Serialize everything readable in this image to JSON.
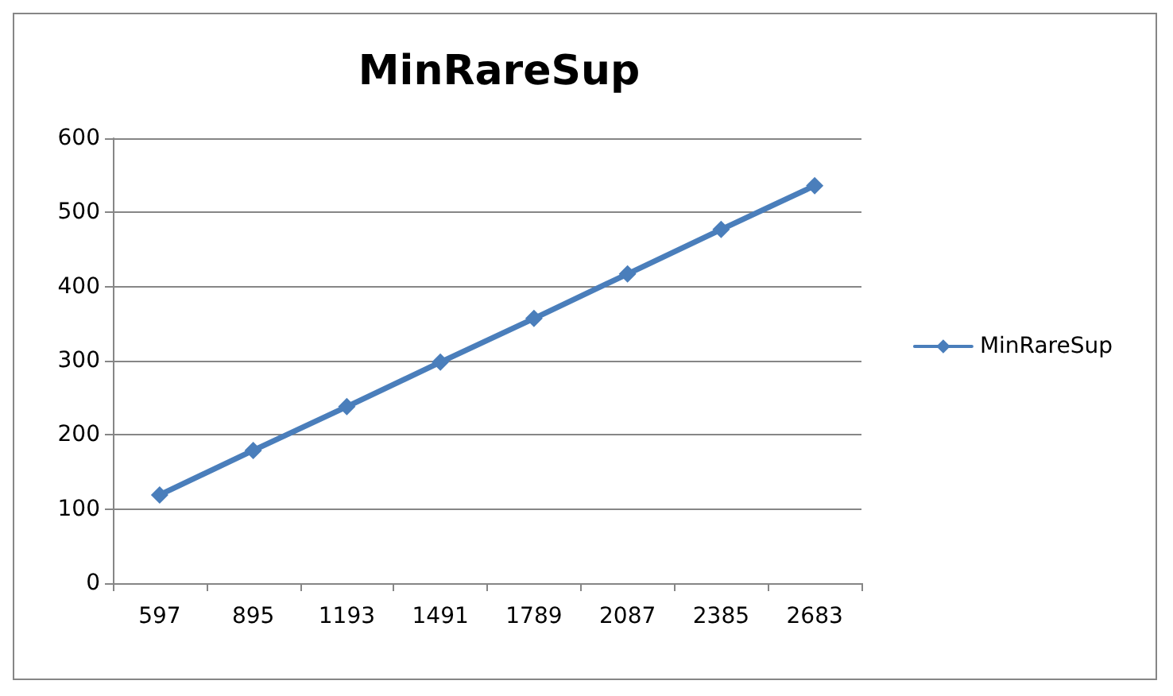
{
  "chart_data": {
    "type": "line",
    "title": "MinRareSup",
    "categories": [
      "597",
      "895",
      "1193",
      "1491",
      "1789",
      "2087",
      "2385",
      "2683"
    ],
    "series": [
      {
        "name": "MinRareSup",
        "color": "#4a7ebb",
        "values": [
          119,
          179,
          238,
          298,
          357,
          417,
          477,
          536
        ]
      }
    ],
    "ylim": [
      0,
      600
    ],
    "yticks": [
      0,
      100,
      200,
      300,
      400,
      500,
      600
    ],
    "grid": "y",
    "legend": "right",
    "marker": "diamond",
    "line_style": "solid"
  }
}
